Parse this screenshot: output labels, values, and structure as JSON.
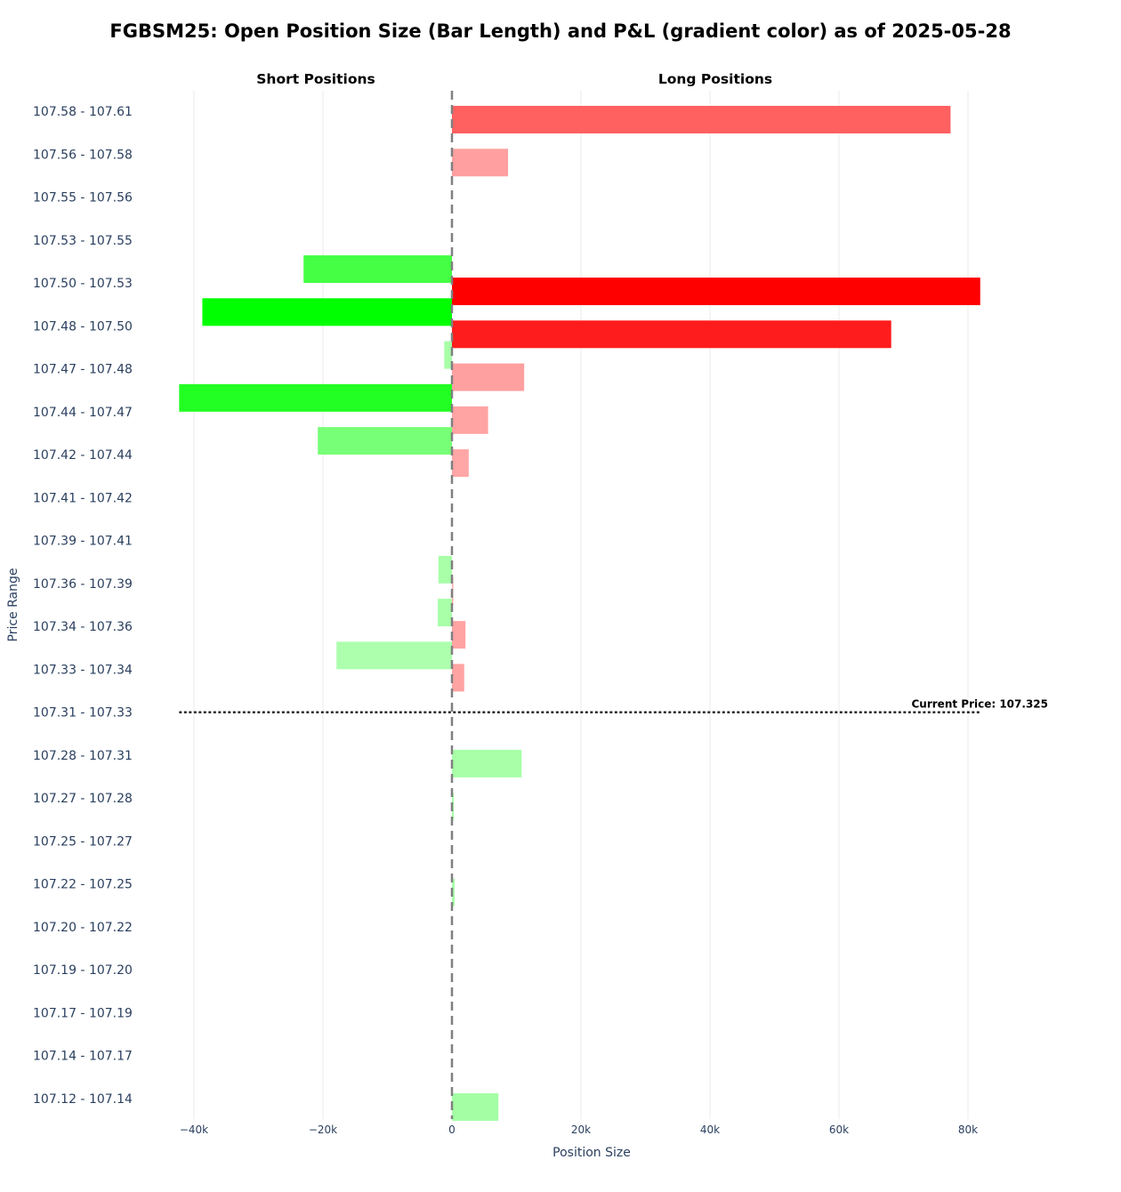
{
  "chart_data": {
    "type": "bar",
    "orientation": "horizontal",
    "title": "FGBSM25: Open Position Size (Bar Length) and P&L (gradient color) as of 2025-05-28",
    "panel_titles": {
      "short": "Short Positions",
      "long": "Long Positions"
    },
    "xlabel": "Position Size",
    "ylabel": "Price Range",
    "xlim": [
      -45000,
      90000
    ],
    "xticks": [
      {
        "value": -40000,
        "label": "−40k"
      },
      {
        "value": -20000,
        "label": "−20k"
      },
      {
        "value": 0,
        "label": "0"
      },
      {
        "value": 20000,
        "label": "20k"
      },
      {
        "value": 40000,
        "label": "40k"
      },
      {
        "value": 60000,
        "label": "60k"
      },
      {
        "value": 80000,
        "label": "80k"
      }
    ],
    "grid": true,
    "zero_line": "dashed",
    "categories": [
      "107.58 - 107.61",
      "107.56 - 107.58",
      "107.55 - 107.56",
      "107.53 - 107.55",
      "107.50 - 107.53",
      "107.48 - 107.50",
      "107.47 - 107.48",
      "107.44 - 107.47",
      "107.42 - 107.44",
      "107.41 - 107.42",
      "107.39 - 107.41",
      "107.36 - 107.39",
      "107.34 - 107.36",
      "107.33 - 107.34",
      "107.31 - 107.33",
      "107.28 - 107.31",
      "107.27 - 107.28",
      "107.25 - 107.27",
      "107.22 - 107.25",
      "107.20 - 107.22",
      "107.19 - 107.20",
      "107.17 - 107.19",
      "107.14 - 107.17",
      "107.12 - 107.14"
    ],
    "series": [
      {
        "side": "short",
        "values": [
          0,
          0,
          0,
          0,
          -23000,
          -38700,
          -1200,
          -42300,
          -20800,
          0,
          0,
          -2100,
          -2200,
          -17900,
          0,
          0,
          0,
          0,
          0,
          0,
          0,
          0,
          0,
          0
        ],
        "colors": [
          "",
          "",
          "",
          "",
          "#44ff44",
          "#00ff00",
          "#a8ffa8",
          "#22ff22",
          "#77ff77",
          "",
          "",
          "#a8ffa8",
          "#a8ffa8",
          "#adffad",
          "",
          "",
          "",
          "",
          "",
          "",
          "",
          "",
          "",
          ""
        ]
      },
      {
        "side": "long",
        "values": [
          77300,
          8700,
          0,
          0,
          81900,
          68100,
          11200,
          5600,
          2600,
          0,
          0,
          200,
          2100,
          1900,
          0,
          10800,
          300,
          0,
          400,
          0,
          0,
          0,
          0,
          7200
        ],
        "colors": [
          "#ff6060",
          "#ff9f9f",
          "",
          "",
          "#ff0000",
          "#ff1c1c",
          "#ffa0a0",
          "#ffa3a3",
          "#ffa6a6",
          "",
          "",
          "#ffa6a6",
          "#ffa3a3",
          "#ffa3a3",
          "",
          "#a8ffa8",
          "#a8ffa8",
          "",
          "#a8ffa8",
          "",
          "",
          "",
          "",
          "#a4ffa4"
        ]
      }
    ],
    "current_price": {
      "label": "Current Price: 107.325",
      "category": "107.31 - 107.33"
    }
  }
}
